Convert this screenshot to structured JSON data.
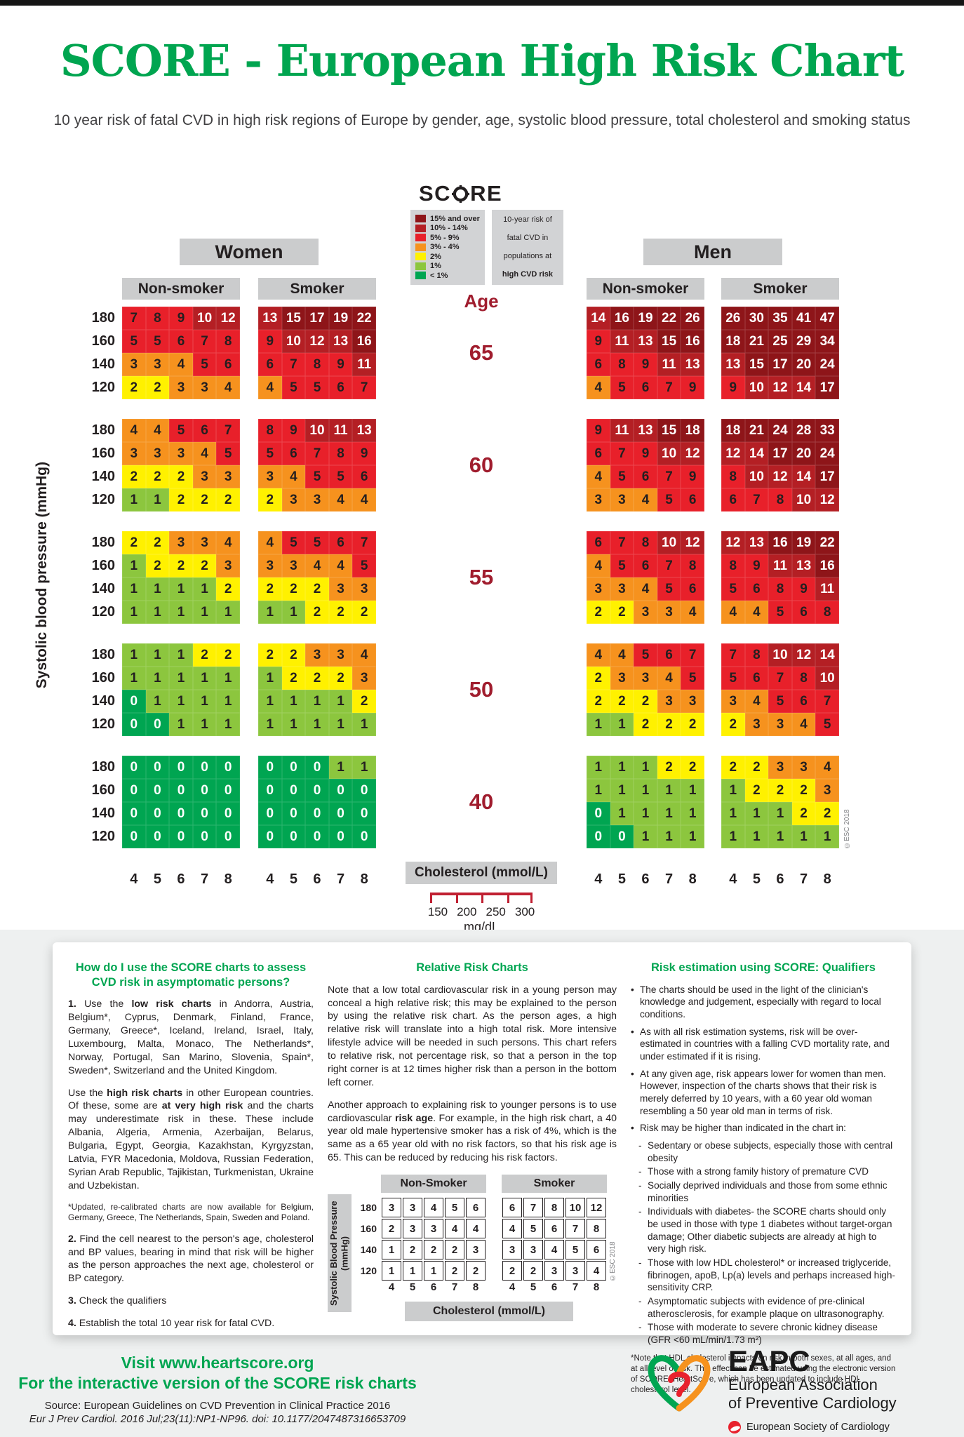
{
  "header": {
    "title": "SCORE - European High Risk Chart",
    "subtitle": "10 year risk of fatal CVD in high risk regions of Europe by gender, age, systolic blood pressure, total cholesterol and smoking status"
  },
  "legend": {
    "logo_left": "SC",
    "logo_right": "RE",
    "items": [
      {
        "label": "15% and over",
        "color": "#8E1519"
      },
      {
        "label": "10% - 14%",
        "color": "#B41F24"
      },
      {
        "label": "5% - 9%",
        "color": "#E8202A"
      },
      {
        "label": "3% - 4%",
        "color": "#F6921E"
      },
      {
        "label": "2%",
        "color": "#FFF100"
      },
      {
        "label": "1%",
        "color": "#8CC63E"
      },
      {
        "label": "< 1%",
        "color": "#00A551"
      }
    ],
    "note_lines": [
      "10-year risk of",
      "fatal CVD in",
      "populations at",
      "high CVD risk"
    ]
  },
  "groups": {
    "women": "Women",
    "men": "Men",
    "nonsmoker": "Non-smoker",
    "smoker": "Smoker"
  },
  "axes": {
    "age_label": "Age",
    "y_label": "Systolic blood pressure (mmHg)",
    "bp_rows": [
      180,
      160,
      140,
      120
    ],
    "chol_ticks": [
      4,
      5,
      6,
      7,
      8
    ],
    "chol_label": "Cholesterol (mmol/L)",
    "mgdl_ticks": [
      "150",
      "200",
      "250",
      "300"
    ],
    "mgdl_label": "mg/dL"
  },
  "copyright": "©ESC 2018",
  "chart_data": {
    "type": "heatmap",
    "title": "SCORE - European High Risk Chart",
    "x": [
      4,
      5,
      6,
      7,
      8
    ],
    "xlabel": "Cholesterol (mmol/L)",
    "y": [
      180,
      160,
      140,
      120
    ],
    "ylabel": "Systolic blood pressure (mmHg)",
    "ages": [
      65,
      60,
      55,
      50,
      40
    ],
    "groups": [
      "Women Non-smoker",
      "Women Smoker",
      "Men Non-smoker",
      "Men Smoker"
    ],
    "legend_bins": [
      "15% and over",
      "10% - 14%",
      "5% - 9%",
      "3% - 4%",
      "2%",
      "1%",
      "< 1%"
    ],
    "grids": {
      "age65": {
        "women_nonsmoker": [
          [
            7,
            8,
            9,
            10,
            12
          ],
          [
            5,
            5,
            6,
            7,
            8
          ],
          [
            3,
            3,
            4,
            5,
            6
          ],
          [
            2,
            2,
            3,
            3,
            4
          ]
        ],
        "women_smoker": [
          [
            13,
            15,
            17,
            19,
            22
          ],
          [
            9,
            10,
            12,
            13,
            16
          ],
          [
            6,
            7,
            8,
            9,
            11
          ],
          [
            4,
            5,
            5,
            6,
            7
          ]
        ],
        "men_nonsmoker": [
          [
            14,
            16,
            19,
            22,
            26
          ],
          [
            9,
            11,
            13,
            15,
            16
          ],
          [
            6,
            8,
            9,
            11,
            13
          ],
          [
            4,
            5,
            6,
            7,
            9
          ]
        ],
        "men_smoker": [
          [
            26,
            30,
            35,
            41,
            47
          ],
          [
            18,
            21,
            25,
            29,
            34
          ],
          [
            13,
            15,
            17,
            20,
            24
          ],
          [
            9,
            10,
            12,
            14,
            17
          ]
        ]
      },
      "age60": {
        "women_nonsmoker": [
          [
            4,
            4,
            5,
            6,
            7
          ],
          [
            3,
            3,
            3,
            4,
            5
          ],
          [
            2,
            2,
            2,
            3,
            3
          ],
          [
            1,
            1,
            2,
            2,
            2
          ]
        ],
        "women_smoker": [
          [
            8,
            9,
            10,
            11,
            13
          ],
          [
            5,
            6,
            7,
            8,
            9
          ],
          [
            3,
            4,
            5,
            5,
            6
          ],
          [
            2,
            3,
            3,
            4,
            4
          ]
        ],
        "men_nonsmoker": [
          [
            9,
            11,
            13,
            15,
            18
          ],
          [
            6,
            7,
            9,
            10,
            12
          ],
          [
            4,
            5,
            6,
            7,
            9
          ],
          [
            3,
            3,
            4,
            5,
            6
          ]
        ],
        "men_smoker": [
          [
            18,
            21,
            24,
            28,
            33
          ],
          [
            12,
            14,
            17,
            20,
            24
          ],
          [
            8,
            10,
            12,
            14,
            17
          ],
          [
            6,
            7,
            8,
            10,
            12
          ]
        ]
      },
      "age55": {
        "women_nonsmoker": [
          [
            2,
            2,
            3,
            3,
            4
          ],
          [
            1,
            2,
            2,
            2,
            3
          ],
          [
            1,
            1,
            1,
            1,
            2
          ],
          [
            1,
            1,
            1,
            1,
            1
          ]
        ],
        "women_smoker": [
          [
            4,
            5,
            5,
            6,
            7
          ],
          [
            3,
            3,
            4,
            4,
            5
          ],
          [
            2,
            2,
            2,
            3,
            3
          ],
          [
            1,
            1,
            2,
            2,
            2
          ]
        ],
        "men_nonsmoker": [
          [
            6,
            7,
            8,
            10,
            12
          ],
          [
            4,
            5,
            6,
            7,
            8
          ],
          [
            3,
            3,
            4,
            5,
            6
          ],
          [
            2,
            2,
            3,
            3,
            4
          ]
        ],
        "men_smoker": [
          [
            12,
            13,
            16,
            19,
            22
          ],
          [
            8,
            9,
            11,
            13,
            16
          ],
          [
            5,
            6,
            8,
            9,
            11
          ],
          [
            4,
            4,
            5,
            6,
            8
          ]
        ]
      },
      "age50": {
        "women_nonsmoker": [
          [
            1,
            1,
            1,
            2,
            2
          ],
          [
            1,
            1,
            1,
            1,
            1
          ],
          [
            0,
            1,
            1,
            1,
            1
          ],
          [
            0,
            0,
            1,
            1,
            1
          ]
        ],
        "women_smoker": [
          [
            2,
            2,
            3,
            3,
            4
          ],
          [
            1,
            2,
            2,
            2,
            3
          ],
          [
            1,
            1,
            1,
            1,
            2
          ],
          [
            1,
            1,
            1,
            1,
            1
          ]
        ],
        "men_nonsmoker": [
          [
            4,
            4,
            5,
            6,
            7
          ],
          [
            2,
            3,
            3,
            4,
            5
          ],
          [
            2,
            2,
            2,
            3,
            3
          ],
          [
            1,
            1,
            2,
            2,
            2
          ]
        ],
        "men_smoker": [
          [
            7,
            8,
            10,
            12,
            14
          ],
          [
            5,
            6,
            7,
            8,
            10
          ],
          [
            3,
            4,
            5,
            6,
            7
          ],
          [
            2,
            3,
            3,
            4,
            5
          ]
        ]
      },
      "age40": {
        "women_nonsmoker": [
          [
            0,
            0,
            0,
            0,
            0
          ],
          [
            0,
            0,
            0,
            0,
            0
          ],
          [
            0,
            0,
            0,
            0,
            0
          ],
          [
            0,
            0,
            0,
            0,
            0
          ]
        ],
        "women_smoker": [
          [
            0,
            0,
            0,
            1,
            1
          ],
          [
            0,
            0,
            0,
            0,
            0
          ],
          [
            0,
            0,
            0,
            0,
            0
          ],
          [
            0,
            0,
            0,
            0,
            0
          ]
        ],
        "men_nonsmoker": [
          [
            1,
            1,
            1,
            2,
            2
          ],
          [
            1,
            1,
            1,
            1,
            1
          ],
          [
            0,
            1,
            1,
            1,
            1
          ],
          [
            0,
            0,
            1,
            1,
            1
          ]
        ],
        "men_smoker": [
          [
            2,
            2,
            3,
            3,
            4
          ],
          [
            1,
            2,
            2,
            2,
            3
          ],
          [
            1,
            1,
            1,
            2,
            2
          ],
          [
            1,
            1,
            1,
            1,
            1
          ]
        ]
      }
    },
    "relative_risk": {
      "nonsmoker": [
        [
          3,
          3,
          4,
          5,
          6
        ],
        [
          2,
          3,
          3,
          4,
          4
        ],
        [
          1,
          2,
          2,
          2,
          3
        ],
        [
          1,
          1,
          1,
          2,
          2
        ]
      ],
      "smoker": [
        [
          6,
          7,
          8,
          10,
          12
        ],
        [
          4,
          5,
          6,
          7,
          8
        ],
        [
          3,
          3,
          4,
          5,
          6
        ],
        [
          2,
          2,
          3,
          3,
          4
        ]
      ]
    }
  },
  "col1": {
    "heading": "How do I use the SCORE charts to assess CVD risk in asymptomatic persons?",
    "p1": [
      {
        "t": "1. ",
        "b": true
      },
      {
        "t": "Use the "
      },
      {
        "t": "low risk charts",
        "b": true
      },
      {
        "t": " in Andorra, Austria, Belgium*, Cyprus, Denmark, Finland, France, Germany, Greece*, Iceland, Ireland, Israel, Italy, Luxembourg, Malta, Monaco, The Netherlands*, Norway, Portugal, San Marino, Slovenia, Spain*, Sweden*, Switzerland and the United Kingdom."
      }
    ],
    "p2": [
      {
        "t": "Use the "
      },
      {
        "t": "high risk charts",
        "b": true
      },
      {
        "t": " in other European countries. Of these, some are "
      },
      {
        "t": "at very high risk",
        "b": true
      },
      {
        "t": " and the charts may underestimate risk in these. These include Albania, Algeria, Armenia, Azerbaijan, Belarus, Bulgaria, Egypt, Georgia, Kazakhstan, Kyrgyzstan, Latvia, FYR Macedonia, Moldova, Russian Federation, Syrian Arab Republic, Tajikistan, Turkmenistan, Ukraine and Uzbekistan."
      }
    ],
    "p3": [
      {
        "t": "*Updated, re-calibrated charts are now available for Belgium, Germany, Greece, The Netherlands, Spain, Sweden and Poland."
      }
    ],
    "p4": [
      {
        "t": "2. ",
        "b": true
      },
      {
        "t": "Find the cell nearest to the person's age, cholesterol and BP values, bearing in mind that risk will be higher as the person approaches the next age, cholesterol or BP category."
      }
    ],
    "p5": [
      {
        "t": "3. ",
        "b": true
      },
      {
        "t": "Check the qualifiers"
      }
    ],
    "p6": [
      {
        "t": "4. ",
        "b": true
      },
      {
        "t": "Establish the total 10 year risk for fatal CVD."
      }
    ]
  },
  "col2": {
    "heading": "Relative Risk Charts",
    "p1": [
      {
        "t": "Note that a low total cardiovascular risk in a young person may conceal a high relative risk; this may be explained to the person by using the relative risk chart. As the person ages, a high relative risk will translate into a high total risk. More intensive lifestyle advice will be needed in such persons. This chart refers to relative risk, not percentage risk, so that a person in the top right corner is at 12 times higher risk than a person in the bottom left corner."
      }
    ],
    "p2": [
      {
        "t": "Another approach to explaining risk to younger persons is to use cardiovascular "
      },
      {
        "t": "risk age",
        "b": true
      },
      {
        "t": ". For example, in the high risk chart, a 40 year old male hypertensive smoker has a risk of 4%, which is the same as a 65 year old with no risk factors, so that his risk age is 65. This can be reduced by reducing his risk factors."
      }
    ],
    "rr_nonsmoker_label": "Non-Smoker",
    "rr_smoker_label": "Smoker",
    "rr_y_label": "Systolic Blood Pressure (mmHg)",
    "rr_chol_label": "Cholesterol (mmol/L)"
  },
  "col3": {
    "heading": "Risk estimation using SCORE: Qualifiers",
    "bullets": [
      {
        "b": "•",
        "ind": 0,
        "t": "The charts should be used in the light of the clinician's knowledge and judgement, especially with regard to local conditions."
      },
      {
        "b": "•",
        "ind": 0,
        "t": "As with all risk estimation systems, risk will be over-estimated in countries with a falling CVD mortality rate, and under estimated if it is rising."
      },
      {
        "b": "•",
        "ind": 0,
        "t": "At any given age, risk appears lower for women than men. However, inspection of the charts shows that their risk is merely deferred by 10 years, with a 60 year old woman resembling a 50 year old man in terms of risk."
      },
      {
        "b": "•",
        "ind": 0,
        "t": "Risk may be higher than indicated in the chart in:"
      },
      {
        "b": "-",
        "ind": 1,
        "t": "Sedentary or obese subjects, especially those with central obesity"
      },
      {
        "b": "-",
        "ind": 1,
        "t": "Those with a strong family history of premature CVD"
      },
      {
        "b": "-",
        "ind": 1,
        "t": "Socially deprived individuals and those from some ethnic minorities"
      },
      {
        "b": "-",
        "ind": 1,
        "t": "Individuals with diabetes- the SCORE charts should only be used in those with type 1 diabetes without target-organ damage; Other diabetic subjects are already at high to very high risk."
      },
      {
        "b": "-",
        "ind": 1,
        "t": "Those with low HDL cholesterol* or increased triglyceride, fibrinogen, apoB, Lp(a) levels and perhaps increased high-sensitivity CRP."
      },
      {
        "b": "-",
        "ind": 1,
        "t": "Asymptomatic subjects with evidence of pre-clinical atherosclerosis, for example plaque on ultrasonography."
      },
      {
        "b": "-",
        "ind": 1,
        "t": "Those with moderate to severe chronic kidney disease (GFR <60 mL/min/1.73 m²)"
      }
    ],
    "footnote": "*Note that HDL cholesterol impacts on risk in both sexes, at all ages, and at all level of risk. This effect can be estimated using the electronic version of SCORE, HeartScore, which has been updated to include HDL cholesterol level."
  },
  "footer": {
    "link1": "Visit www.heartscore.org",
    "link2": "For the interactive version of the SCORE risk charts",
    "source1": "Source: European Guidelines on CVD Prevention in Clinical Practice 2016",
    "source2": "Eur J Prev Cardiol. 2016 Jul;23(11):NP1-NP96. doi: 10.1177/2047487316653709",
    "eapc_acronym": "EAPC",
    "eapc_line1": "European Association",
    "eapc_line2": "of Preventive Cardiology",
    "esc_name": "European Society of Cardiology"
  },
  "colors": {
    "accent_green": "#00A550",
    "age_red": "#A01D2E",
    "header_grey": "#cbcccd",
    "ruler_red": "#c02032"
  }
}
